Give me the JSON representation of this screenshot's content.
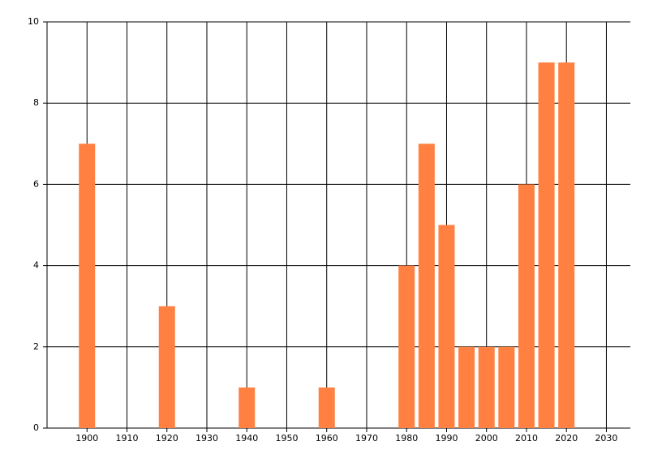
{
  "chart_data": {
    "type": "bar",
    "x": [
      1900,
      1920,
      1940,
      1960,
      1980,
      1985,
      1990,
      1995,
      2000,
      2005,
      2010,
      2015,
      2020
    ],
    "values": [
      7,
      3,
      1,
      1,
      4,
      7,
      5,
      2,
      2,
      2,
      6,
      9,
      9
    ],
    "color": "#ff8040",
    "xlim": [
      1890,
      2036
    ],
    "xticks": [
      1900,
      1910,
      1920,
      1930,
      1940,
      1950,
      1960,
      1970,
      1980,
      1990,
      2000,
      2010,
      2020,
      2030
    ],
    "ylim": [
      0,
      10
    ],
    "yticks": [
      0,
      2,
      4,
      6,
      8,
      10
    ],
    "grid": true
  }
}
